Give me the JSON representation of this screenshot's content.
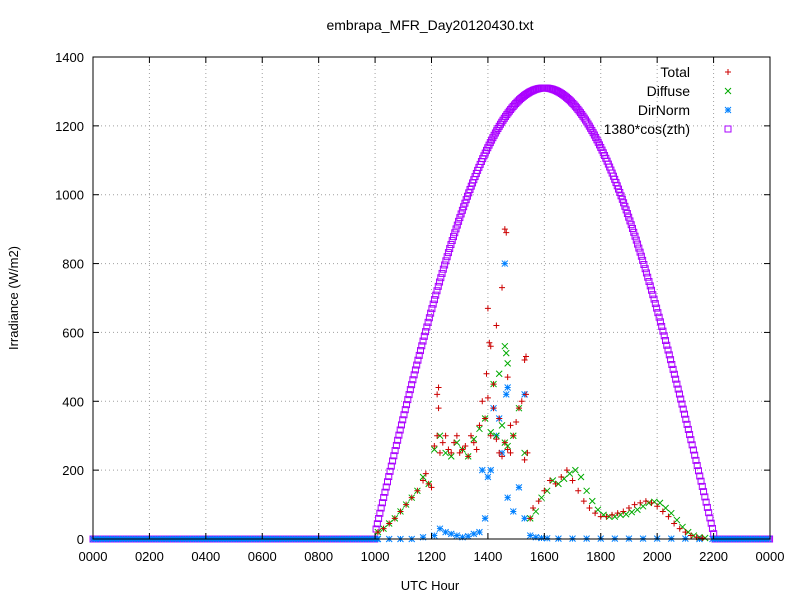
{
  "chart_data": {
    "type": "scatter",
    "title": "embrapa_MFR_Day20120430.txt",
    "xlabel": "UTC Hour",
    "ylabel": "Irradiance (W/m2)",
    "xlim": [
      0,
      24
    ],
    "ylim": [
      0,
      1400
    ],
    "x_ticks": [
      0,
      2,
      4,
      6,
      8,
      10,
      12,
      14,
      16,
      18,
      20,
      22,
      24
    ],
    "x_tick_labels": [
      "0000",
      "0200",
      "0400",
      "0600",
      "0800",
      "1000",
      "1200",
      "1400",
      "1600",
      "1800",
      "2000",
      "2200",
      "0000"
    ],
    "y_ticks": [
      0,
      200,
      400,
      600,
      800,
      1000,
      1200,
      1400
    ],
    "y_tick_labels": [
      "0",
      "200",
      "400",
      "600",
      "800",
      "1000",
      "1200",
      "1400"
    ],
    "grid": true,
    "legend_position": "top-right",
    "series": [
      {
        "name": "Total",
        "marker": "plus",
        "color": "#cc0000",
        "x": [
          10.1,
          10.3,
          10.5,
          10.7,
          10.9,
          11.1,
          11.3,
          11.5,
          11.7,
          11.8,
          11.9,
          12.0,
          12.1,
          12.2,
          12.25,
          12.3,
          12.4,
          12.5,
          12.6,
          12.7,
          12.8,
          12.9,
          13.0,
          13.1,
          13.2,
          13.3,
          13.4,
          13.5,
          13.6,
          13.7,
          13.8,
          13.9,
          14.0,
          14.1,
          14.2,
          14.3,
          14.4,
          14.5,
          14.6,
          14.7,
          14.8,
          14.9,
          15.0,
          15.1,
          15.2,
          15.3,
          15.35,
          15.4,
          15.5,
          15.6,
          15.8,
          16.0,
          16.2,
          16.4,
          16.6,
          16.8,
          17.0,
          17.2,
          17.4,
          17.6,
          17.8,
          18.0,
          18.2,
          18.4,
          18.6,
          18.8,
          19.0,
          19.2,
          19.4,
          19.6,
          19.8,
          20.0,
          20.2,
          20.4,
          20.6,
          20.8,
          21.0,
          21.2,
          21.4,
          21.6,
          14.0,
          14.05,
          14.1,
          14.2,
          14.3,
          14.5,
          14.6,
          14.65,
          14.7,
          12.2,
          12.25,
          13.95,
          15.3,
          15.35,
          14.8,
          14.4
        ],
        "y": [
          20,
          30,
          45,
          60,
          80,
          100,
          120,
          140,
          170,
          190,
          160,
          150,
          270,
          300,
          380,
          250,
          280,
          300,
          260,
          250,
          280,
          300,
          250,
          260,
          270,
          240,
          300,
          280,
          260,
          330,
          400,
          350,
          410,
          300,
          380,
          290,
          250,
          240,
          280,
          260,
          330,
          300,
          340,
          380,
          400,
          230,
          420,
          250,
          60,
          90,
          110,
          140,
          170,
          160,
          180,
          200,
          170,
          140,
          110,
          90,
          75,
          65,
          65,
          70,
          75,
          80,
          90,
          100,
          105,
          110,
          105,
          95,
          80,
          65,
          45,
          30,
          20,
          10,
          5,
          3,
          670,
          570,
          560,
          450,
          620,
          730,
          900,
          890,
          470,
          420,
          440,
          480,
          520,
          530,
          250,
          350
        ]
      },
      {
        "name": "Diffuse",
        "marker": "cross",
        "color": "#00aa00",
        "x": [
          10.1,
          10.3,
          10.5,
          10.7,
          10.9,
          11.1,
          11.3,
          11.5,
          11.7,
          11.9,
          12.1,
          12.3,
          12.5,
          12.7,
          12.9,
          13.1,
          13.3,
          13.5,
          13.7,
          13.9,
          14.1,
          14.3,
          14.5,
          14.6,
          14.7,
          14.9,
          15.1,
          15.3,
          15.5,
          15.7,
          15.9,
          16.1,
          16.3,
          16.5,
          16.7,
          16.9,
          17.1,
          17.3,
          17.5,
          17.7,
          17.9,
          18.1,
          18.3,
          18.5,
          18.7,
          18.9,
          19.1,
          19.3,
          19.5,
          19.7,
          19.9,
          20.1,
          20.3,
          20.5,
          20.7,
          20.9,
          21.1,
          21.3,
          21.5,
          21.7,
          14.6,
          14.65,
          14.7,
          14.4,
          14.2
        ],
        "y": [
          20,
          30,
          45,
          60,
          80,
          100,
          120,
          140,
          180,
          160,
          260,
          300,
          250,
          240,
          280,
          260,
          240,
          290,
          320,
          350,
          310,
          300,
          330,
          280,
          270,
          300,
          380,
          250,
          60,
          80,
          120,
          140,
          170,
          160,
          175,
          190,
          200,
          180,
          140,
          110,
          85,
          70,
          65,
          65,
          70,
          72,
          78,
          85,
          95,
          105,
          108,
          105,
          90,
          75,
          55,
          35,
          20,
          10,
          5,
          3,
          560,
          540,
          510,
          480,
          450
        ]
      },
      {
        "name": "DirNorm",
        "marker": "star",
        "color": "#0080ff",
        "x": [
          10.1,
          10.5,
          10.9,
          11.3,
          11.7,
          12.1,
          12.3,
          12.5,
          12.7,
          12.9,
          13.1,
          13.3,
          13.5,
          13.7,
          13.9,
          14.1,
          14.3,
          14.5,
          14.7,
          14.9,
          15.1,
          15.3,
          15.5,
          15.7,
          15.9,
          16.1,
          16.5,
          17.0,
          17.5,
          18.0,
          18.5,
          19.0,
          19.5,
          20.0,
          20.5,
          21.0,
          21.5,
          14.6,
          14.7,
          14.65,
          14.2,
          14.4,
          13.8,
          14.0,
          15.3
        ],
        "y": [
          0,
          0,
          0,
          0,
          5,
          10,
          30,
          20,
          15,
          10,
          5,
          8,
          15,
          20,
          60,
          200,
          300,
          250,
          120,
          80,
          150,
          60,
          10,
          5,
          3,
          2,
          1,
          1,
          1,
          1,
          1,
          1,
          1,
          1,
          1,
          1,
          0,
          800,
          440,
          420,
          380,
          350,
          200,
          180,
          420
        ]
      },
      {
        "name": "1380*cos(zth)",
        "marker": "square",
        "color": "#aa00ff",
        "solar_noon_hour": 16.0,
        "peak": 1310,
        "rise_hour": 10.0,
        "set_hour": 22.1
      }
    ]
  }
}
